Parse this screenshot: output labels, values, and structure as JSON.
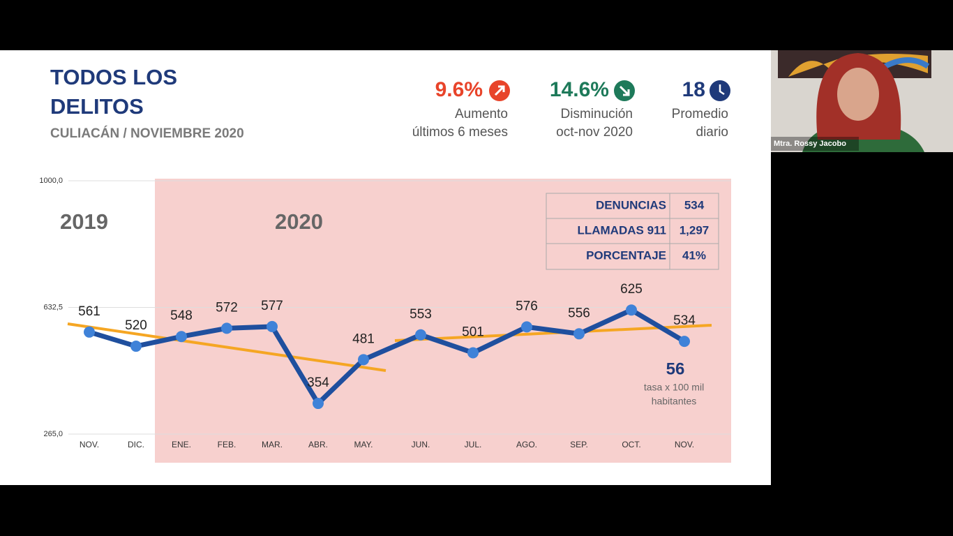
{
  "header": {
    "title": [
      "TODOS LOS",
      "DELITOS"
    ],
    "subtitle": "CULIACÁN / NOVIEMBRE 2020"
  },
  "kpis": [
    {
      "value": "9.6%",
      "label": [
        "Aumento",
        "últimos 6 meses"
      ],
      "color": "#e8442a"
    },
    {
      "value": "14.6%",
      "label": [
        "Disminución",
        "oct-nov 2020"
      ],
      "color": "#1e7a5a"
    },
    {
      "value": "18",
      "label": [
        "Promedio",
        "diario"
      ],
      "color": "#1f3a7a"
    }
  ],
  "chart_data": {
    "type": "line",
    "categories": [
      "NOV.",
      "DIC.",
      "ENE.",
      "FEB.",
      "MAR.",
      "ABR.",
      "MAY.",
      "JUN.",
      "JUL.",
      "AGO.",
      "SEP.",
      "OCT.",
      "NOV."
    ],
    "values": [
      561,
      520,
      548,
      572,
      577,
      354,
      481,
      553,
      501,
      576,
      556,
      625,
      534
    ],
    "color": "#1f4f9e",
    "ylim": [
      265,
      1000
    ],
    "yticks": [
      {
        "value": 265,
        "label": "265,0"
      },
      {
        "value": 632.5,
        "label": "632,5"
      },
      {
        "value": 1000,
        "label": "1000,0"
      }
    ],
    "grid": true,
    "period_labels": [
      "2019",
      "2020"
    ],
    "annotation": {
      "value": "56",
      "text": [
        "tasa x 100 mil",
        "habitantes"
      ]
    }
  },
  "table": {
    "rows": [
      [
        "DENUNCIAS",
        "534"
      ],
      [
        "LLAMADAS 911",
        "1,297"
      ],
      [
        "PORCENTAJE",
        "41%"
      ]
    ]
  },
  "video": {
    "caption": "Mtra. Rossy Jacobo"
  }
}
